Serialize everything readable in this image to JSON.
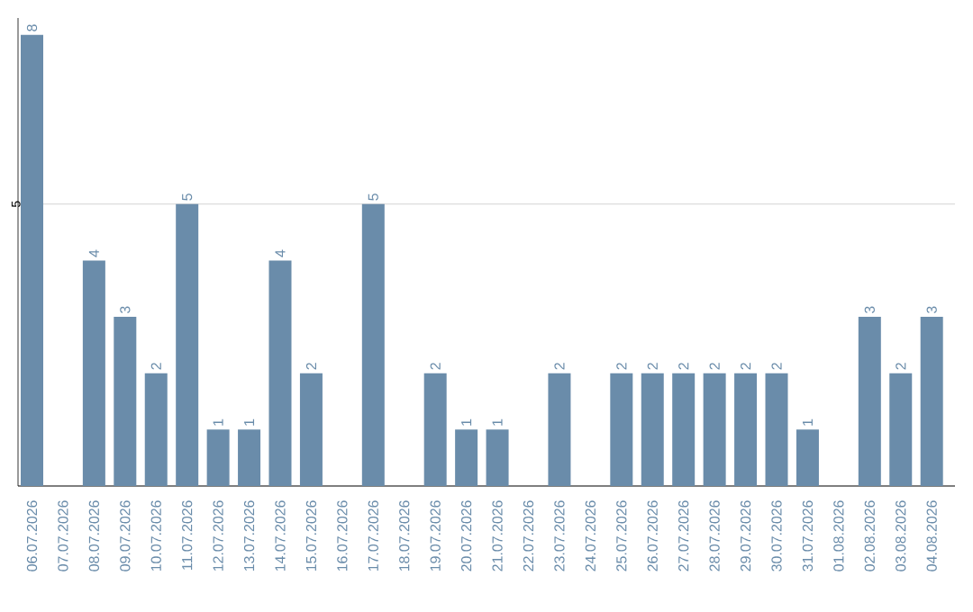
{
  "chart_data": {
    "type": "bar",
    "categories": [
      "06.07.2026",
      "07.07.2026",
      "08.07.2026",
      "09.07.2026",
      "10.07.2026",
      "11.07.2026",
      "12.07.2026",
      "13.07.2026",
      "14.07.2026",
      "15.07.2026",
      "16.07.2026",
      "17.07.2026",
      "18.07.2026",
      "19.07.2026",
      "20.07.2026",
      "21.07.2026",
      "22.07.2026",
      "23.07.2026",
      "24.07.2026",
      "25.07.2026",
      "26.07.2026",
      "27.07.2026",
      "28.07.2026",
      "29.07.2026",
      "30.07.2026",
      "31.07.2026",
      "01.08.2026",
      "02.08.2026",
      "03.08.2026",
      "04.08.2026"
    ],
    "values": [
      8,
      null,
      4,
      3,
      2,
      5,
      1,
      1,
      4,
      2,
      null,
      5,
      null,
      2,
      1,
      1,
      null,
      2,
      null,
      2,
      2,
      2,
      2,
      2,
      2,
      1,
      null,
      3,
      2,
      3
    ],
    "color": "#6a8caa",
    "ylim": [
      0,
      8.3
    ],
    "yticks": [
      5
    ],
    "grid": "y",
    "data_labels": true
  }
}
